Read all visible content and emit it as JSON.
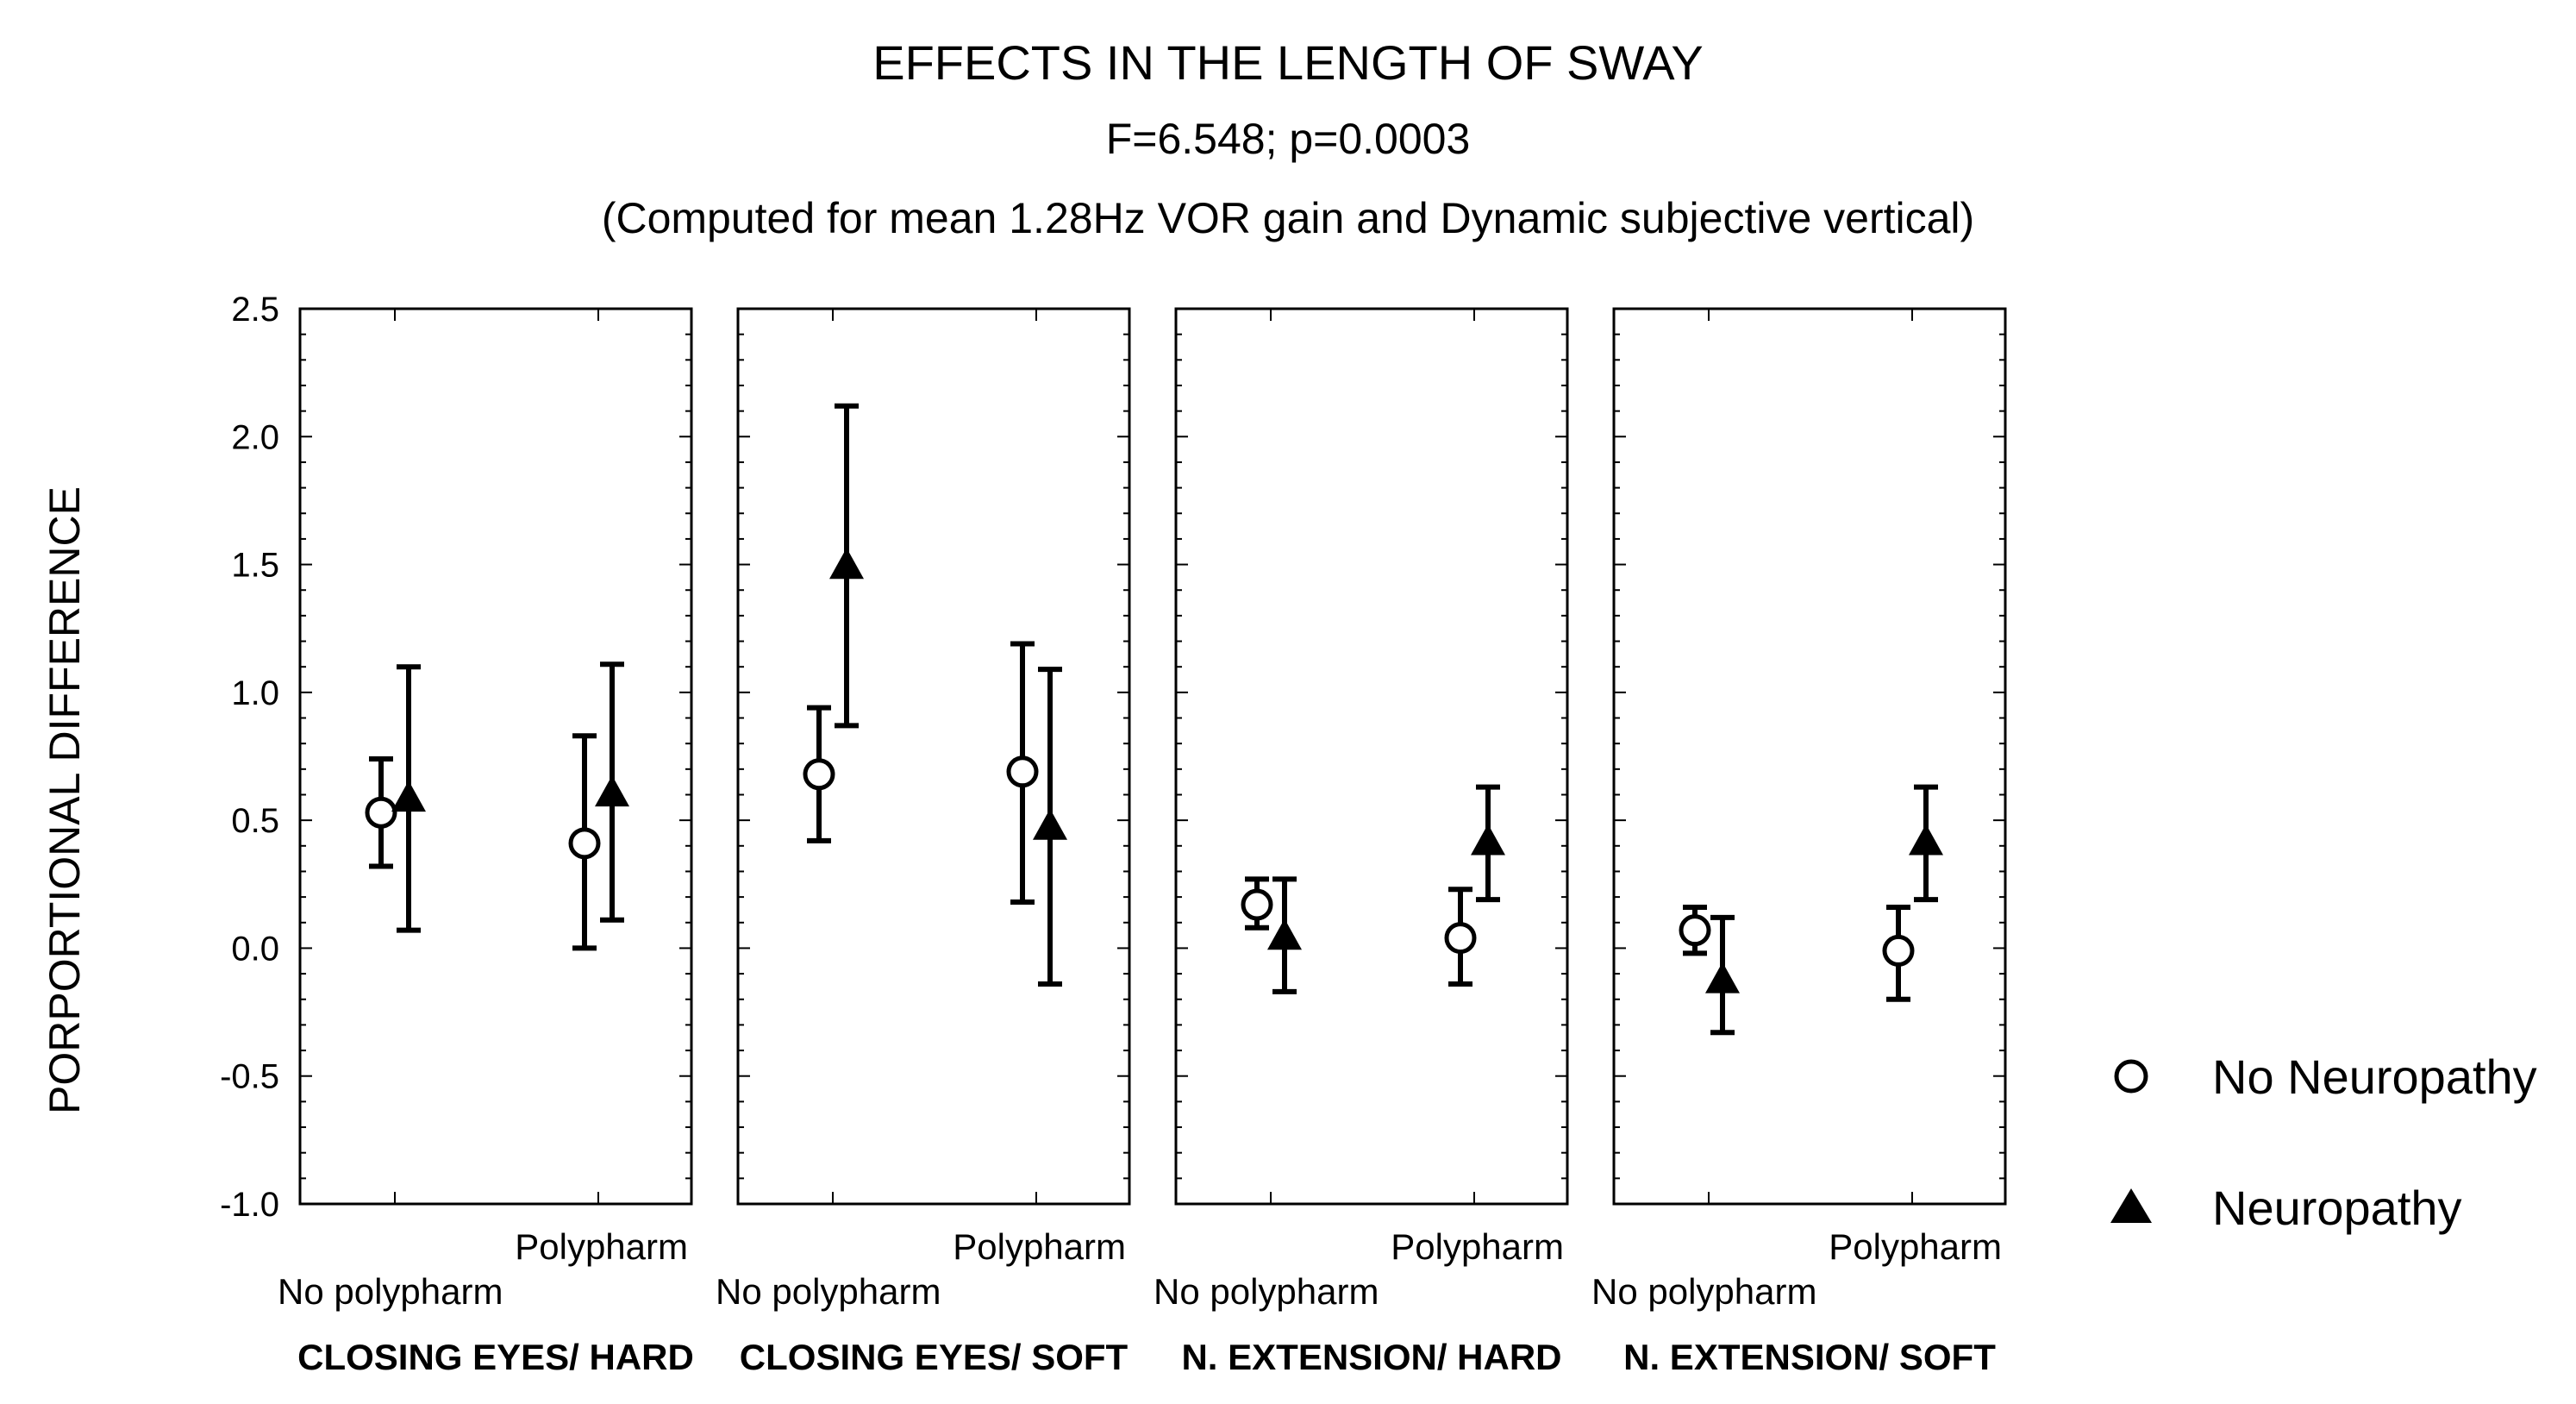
{
  "title": "EFFECTS IN THE LENGTH OF SWAY",
  "subtitle": "F=6.548; p=0.0003",
  "note": "(Computed for mean 1.28Hz VOR gain and Dynamic subjective vertical)",
  "ylabel": "PORPORTIONAL DIFFERENCE",
  "legend": [
    {
      "name": "No Neuropathy",
      "marker": "circle-open"
    },
    {
      "name": "Neuropathy",
      "marker": "triangle-filled"
    }
  ],
  "chart_data": {
    "type": "scatter",
    "ylim": [
      -1.0,
      2.5
    ],
    "yticks": [
      -1.0,
      -0.5,
      0.0,
      0.5,
      1.0,
      1.5,
      2.0,
      2.5
    ],
    "ytick_labels": [
      "-1.0",
      "-0.5",
      "0.0",
      "0.5",
      "1.0",
      "1.5",
      "2.0",
      "2.5"
    ],
    "categories": [
      "No polypharm",
      "Polypharm"
    ],
    "panels": [
      {
        "label": "CLOSING EYES/ HARD",
        "series": [
          {
            "name": "No Neuropathy",
            "points": [
              {
                "category": "No polypharm",
                "mean": 0.53,
                "lower": 0.32,
                "upper": 0.74
              },
              {
                "category": "Polypharm",
                "mean": 0.41,
                "lower": 0.0,
                "upper": 0.83
              }
            ]
          },
          {
            "name": "Neuropathy",
            "points": [
              {
                "category": "No polypharm",
                "mean": 0.58,
                "lower": 0.07,
                "upper": 1.1
              },
              {
                "category": "Polypharm",
                "mean": 0.6,
                "lower": 0.11,
                "upper": 1.11
              }
            ]
          }
        ]
      },
      {
        "label": "CLOSING EYES/ SOFT",
        "series": [
          {
            "name": "No Neuropathy",
            "points": [
              {
                "category": "No polypharm",
                "mean": 0.68,
                "lower": 0.42,
                "upper": 0.94
              },
              {
                "category": "Polypharm",
                "mean": 0.69,
                "lower": 0.18,
                "upper": 1.19
              }
            ]
          },
          {
            "name": "Neuropathy",
            "points": [
              {
                "category": "No polypharm",
                "mean": 1.49,
                "lower": 0.87,
                "upper": 2.12
              },
              {
                "category": "Polypharm",
                "mean": 0.47,
                "lower": -0.14,
                "upper": 1.09
              }
            ]
          }
        ]
      },
      {
        "label": "N. EXTENSION/ HARD",
        "series": [
          {
            "name": "No Neuropathy",
            "points": [
              {
                "category": "No polypharm",
                "mean": 0.17,
                "lower": 0.08,
                "upper": 0.27
              },
              {
                "category": "Polypharm",
                "mean": 0.04,
                "lower": -0.14,
                "upper": 0.23
              }
            ]
          },
          {
            "name": "Neuropathy",
            "points": [
              {
                "category": "No polypharm",
                "mean": 0.04,
                "lower": -0.17,
                "upper": 0.27
              },
              {
                "category": "Polypharm",
                "mean": 0.41,
                "lower": 0.19,
                "upper": 0.63
              }
            ]
          }
        ]
      },
      {
        "label": "N. EXTENSION/ SOFT",
        "series": [
          {
            "name": "No Neuropathy",
            "points": [
              {
                "category": "No polypharm",
                "mean": 0.07,
                "lower": -0.02,
                "upper": 0.16
              },
              {
                "category": "Polypharm",
                "mean": -0.01,
                "lower": -0.2,
                "upper": 0.16
              }
            ]
          },
          {
            "name": "Neuropathy",
            "points": [
              {
                "category": "No polypharm",
                "mean": -0.13,
                "lower": -0.33,
                "upper": 0.12
              },
              {
                "category": "Polypharm",
                "mean": 0.41,
                "lower": 0.19,
                "upper": 0.63
              }
            ]
          }
        ]
      }
    ]
  }
}
